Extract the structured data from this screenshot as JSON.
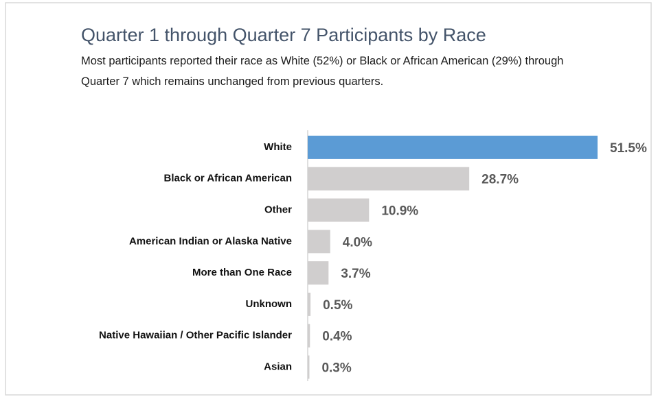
{
  "chart_data": {
    "type": "barh",
    "title": "Quarter 1 through Quarter 7 Participants by Race",
    "subtitle": "Most participants reported their race as White (52%) or Black or African American (29%) through Quarter 7 which remains unchanged from previous quarters.",
    "categories": [
      "White",
      "Black or African American",
      "Other",
      "American Indian or Alaska Native",
      "More than One Race",
      "Unknown",
      "Native Hawaiian / Other Pacific Islander",
      "Asian"
    ],
    "values": [
      51.5,
      28.7,
      10.9,
      4.0,
      3.7,
      0.5,
      0.4,
      0.3
    ],
    "value_labels": [
      "51.5%",
      "28.7%",
      "10.9%",
      "4.0%",
      "3.7%",
      "0.5%",
      "0.4%",
      "0.3%"
    ],
    "colors": [
      "#5b9bd5",
      "#d0cece",
      "#d0cece",
      "#d0cece",
      "#d0cece",
      "#d0cece",
      "#d0cece",
      "#d0cece"
    ]
  }
}
